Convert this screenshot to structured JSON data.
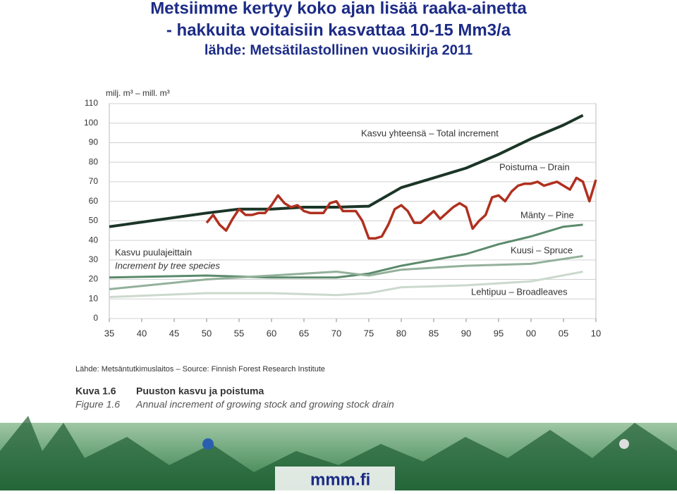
{
  "header": {
    "title_lines": [
      "Metsiimme kertyy koko ajan lisää raaka-ainetta",
      "- hakkuita voitaisiin kasvattaa 10-15 Mm3/a",
      "lähde: Metsätilastollinen vuosikirja 2011"
    ]
  },
  "chart_data": {
    "type": "line",
    "y_label": "milj. m³ – mill. m³",
    "annotations": [
      "Kasvu puulajeittain",
      "Increment by tree species"
    ],
    "xlim": [
      1935,
      2010
    ],
    "xticks": [
      {
        "value": 1935,
        "label": "35"
      },
      {
        "value": 1940,
        "label": "40"
      },
      {
        "value": 1945,
        "label": "45"
      },
      {
        "value": 1950,
        "label": "50"
      },
      {
        "value": 1955,
        "label": "55"
      },
      {
        "value": 1960,
        "label": "60"
      },
      {
        "value": 1965,
        "label": "65"
      },
      {
        "value": 1970,
        "label": "70"
      },
      {
        "value": 1975,
        "label": "75"
      },
      {
        "value": 1980,
        "label": "80"
      },
      {
        "value": 1985,
        "label": "85"
      },
      {
        "value": 1990,
        "label": "90"
      },
      {
        "value": 1995,
        "label": "95"
      },
      {
        "value": 2000,
        "label": "00"
      },
      {
        "value": 2005,
        "label": "05"
      },
      {
        "value": 2010,
        "label": "10"
      }
    ],
    "ylim": [
      0,
      110
    ],
    "yticks": [
      0,
      10,
      20,
      30,
      40,
      50,
      60,
      70,
      80,
      90,
      100,
      110
    ],
    "grid": true,
    "series": [
      {
        "name": "Kasvu yhteensä – Total increment",
        "color": "#1b3527",
        "x": [
          1935,
          1950,
          1955,
          1960,
          1965,
          1970,
          1975,
          1980,
          1985,
          1990,
          1995,
          2000,
          2005,
          2008
        ],
        "values": [
          47,
          54,
          56,
          56,
          57,
          57,
          57.5,
          67,
          72,
          77,
          84,
          92,
          99,
          104
        ]
      },
      {
        "name": "Poistuma – Drain",
        "color": "#b0301f",
        "x": [
          1950,
          1951,
          1952,
          1953,
          1954,
          1955,
          1956,
          1957,
          1958,
          1959,
          1960,
          1961,
          1962,
          1963,
          1964,
          1965,
          1966,
          1967,
          1968,
          1969,
          1970,
          1971,
          1972,
          1973,
          1974,
          1975,
          1976,
          1977,
          1978,
          1979,
          1980,
          1981,
          1982,
          1983,
          1984,
          1985,
          1986,
          1987,
          1988,
          1989,
          1990,
          1991,
          1992,
          1993,
          1994,
          1995,
          1996,
          1997,
          1998,
          1999,
          2000,
          2001,
          2002,
          2003,
          2004,
          2005,
          2006,
          2007,
          2008,
          2009,
          2010
        ],
        "values": [
          49,
          53,
          48,
          45,
          51,
          56,
          53,
          53,
          54,
          54,
          58,
          63,
          59,
          57,
          58,
          55,
          54,
          54,
          54,
          59,
          60,
          55,
          55,
          55,
          50,
          41,
          41,
          42,
          48,
          56,
          58,
          55,
          49,
          49,
          52,
          55,
          51,
          54,
          57,
          59,
          57,
          46,
          50,
          53,
          62,
          63,
          60,
          65,
          68,
          69,
          69,
          70,
          68,
          69,
          70,
          68,
          66,
          72,
          70,
          60,
          71
        ]
      },
      {
        "name": "Mänty – Pine",
        "color": "#5b8a6c",
        "x": [
          1935,
          1950,
          1960,
          1970,
          1975,
          1980,
          1985,
          1990,
          1995,
          2000,
          2005,
          2008
        ],
        "values": [
          21,
          22,
          21,
          21,
          23,
          27,
          30,
          33,
          38,
          42,
          47,
          48
        ]
      },
      {
        "name": "Kuusi – Spruce",
        "color": "#93b09a",
        "x": [
          1935,
          1950,
          1960,
          1970,
          1975,
          1980,
          1990,
          2000,
          2008
        ],
        "values": [
          15,
          20,
          22,
          24,
          22,
          25,
          27,
          28,
          32
        ]
      },
      {
        "name": "Lehtipuu – Broadleaves",
        "color": "#cbd9cd",
        "x": [
          1935,
          1950,
          1960,
          1970,
          1975,
          1980,
          1990,
          2000,
          2008
        ],
        "values": [
          11,
          13,
          13,
          12,
          13,
          16,
          17,
          19,
          24
        ]
      }
    ]
  },
  "caption": {
    "source": "Lähde: Metsäntutkimuslaitos – Source: Finnish Forest Research Institute",
    "number_fi": "Kuva 1.6",
    "title_fi": "Puuston kasvu ja poistuma",
    "number_en": "Figure 1.6",
    "title_en": "Annual increment of growing stock and growing stock drain"
  },
  "footer": {
    "logo": "mmm.fi"
  }
}
